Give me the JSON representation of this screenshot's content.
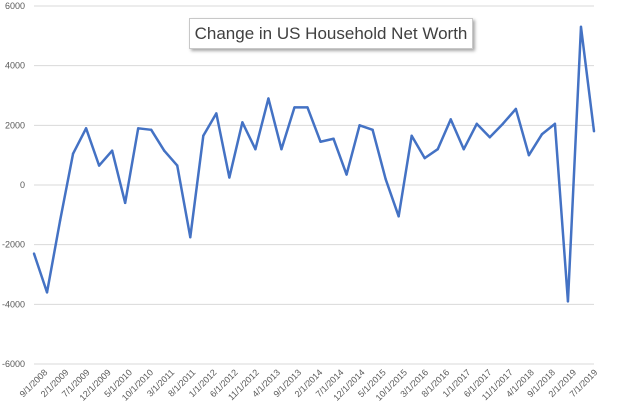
{
  "chart_data": {
    "type": "line",
    "title": "Change in US Household Net Worth",
    "xlabel": "",
    "ylabel": "",
    "ylim": [
      -6000,
      6000
    ],
    "yticks": [
      -6000,
      -4000,
      -2000,
      0,
      2000,
      4000,
      6000
    ],
    "ytick_labels": [
      "-6000",
      "-4000",
      "-2000",
      "0",
      "2000",
      "4000",
      "6000"
    ],
    "grid": true,
    "line_color": "#4472C4",
    "x_tick_labels": [
      "9/1/2008",
      "2/1/2009",
      "7/1/2009",
      "12/1/2009",
      "5/1/2010",
      "10/1/2010",
      "3/1/2011",
      "8/1/2011",
      "1/1/2012",
      "6/1/2012",
      "11/1/2012",
      "4/1/2013",
      "9/1/2013",
      "2/1/2014",
      "7/1/2014",
      "12/1/2014",
      "5/1/2015",
      "10/1/2015",
      "3/1/2016",
      "8/1/2016",
      "1/1/2017",
      "6/1/2017",
      "11/1/2017",
      "4/1/2018",
      "9/1/2018",
      "2/1/2019",
      "7/1/2019"
    ],
    "series": [
      {
        "name": "Change in US Household Net Worth",
        "values": [
          -2300,
          -3600,
          -1200,
          1050,
          1900,
          650,
          1150,
          -600,
          1900,
          1850,
          1150,
          650,
          -1750,
          1650,
          2400,
          250,
          2100,
          1200,
          2900,
          1200,
          2600,
          2600,
          1450,
          1550,
          350,
          2000,
          1850,
          200,
          -1050,
          1650,
          900,
          1200,
          2200,
          1200,
          2050,
          1600,
          2050,
          2550,
          1000,
          1700,
          2050,
          -3900,
          5300,
          1800
        ]
      }
    ]
  }
}
